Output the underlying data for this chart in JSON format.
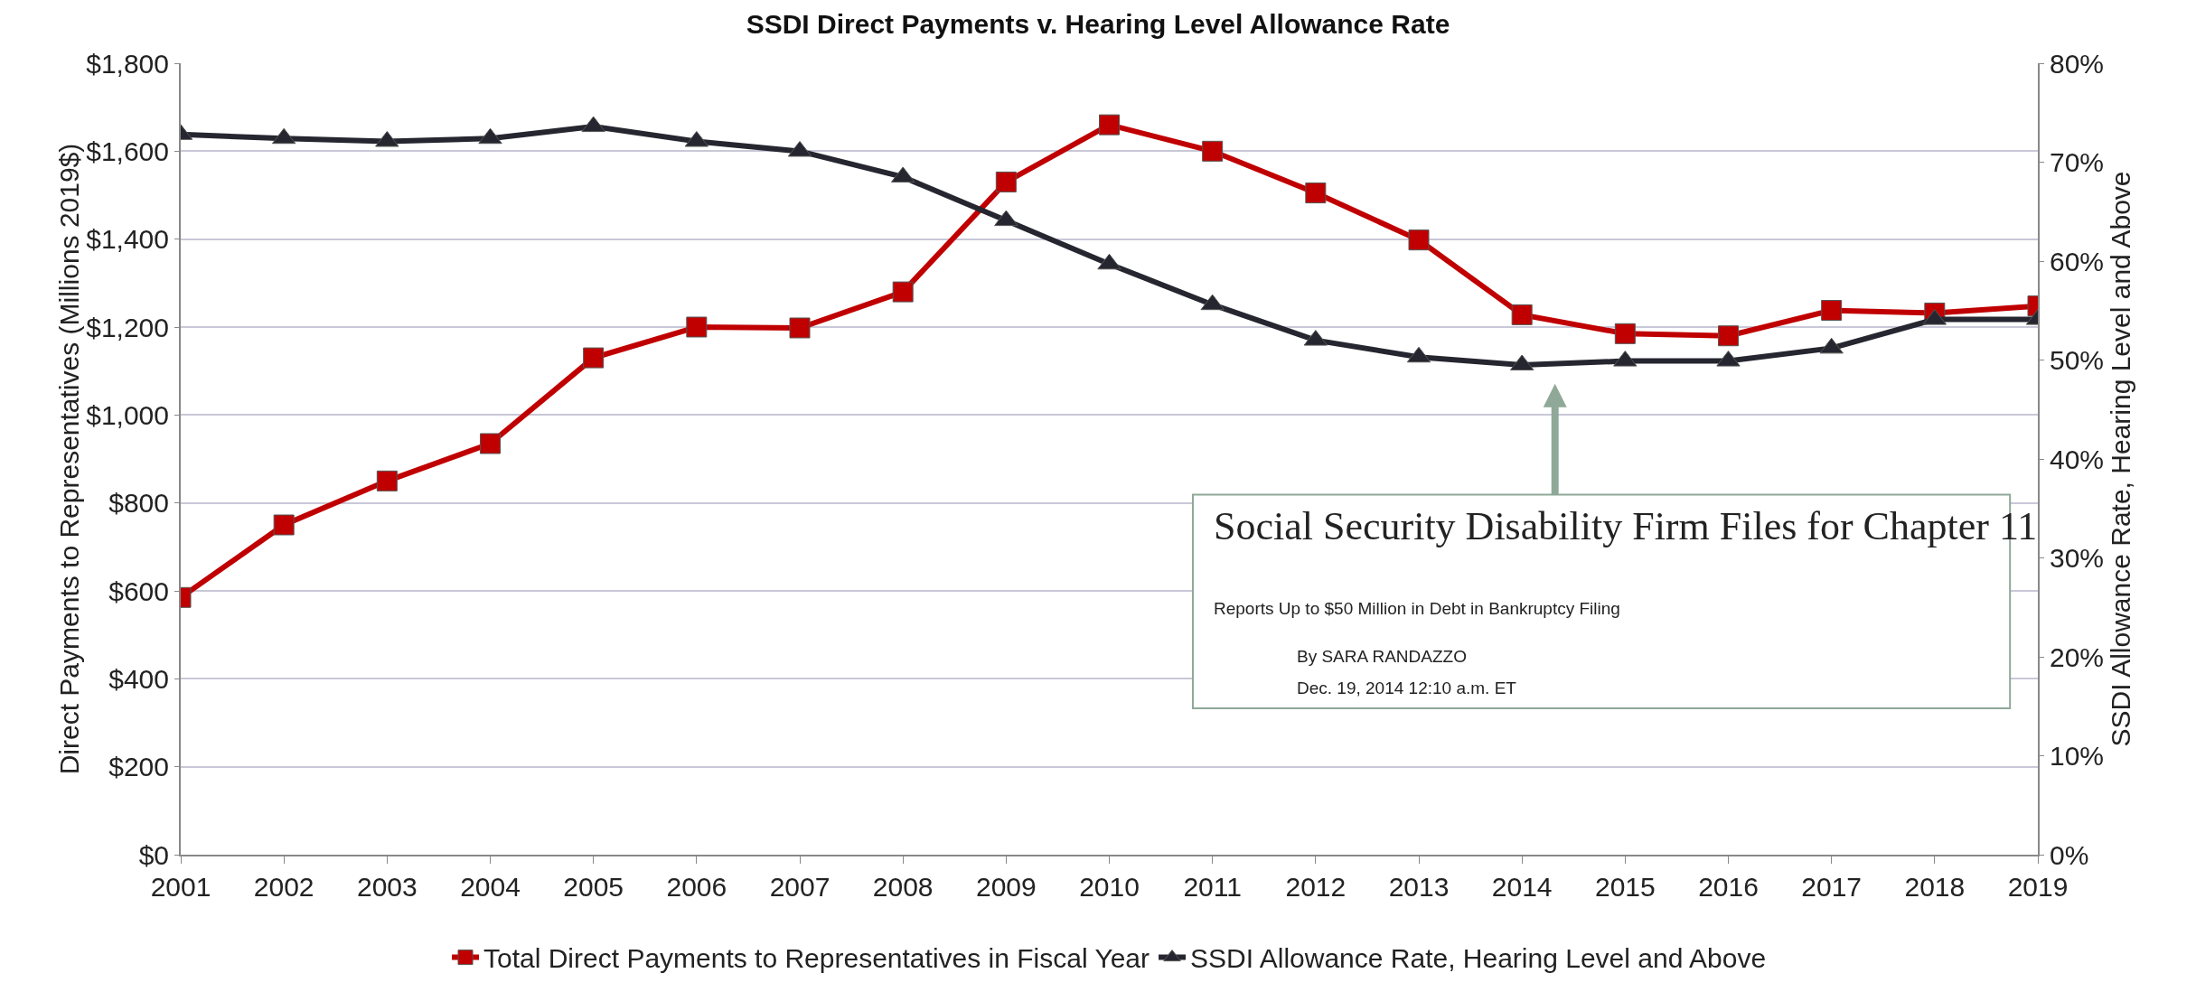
{
  "chart_data": {
    "type": "line",
    "title": "SSDI Direct Payments v. Hearing Level Allowance Rate",
    "ylabel": "Direct Payments to Representatives (Millions 2019$)",
    "y2label": "SSDI Allowance Rate, Hearing Level and Above",
    "x": [
      2001,
      2002,
      2003,
      2004,
      2005,
      2006,
      2007,
      2008,
      2009,
      2010,
      2011,
      2012,
      2013,
      2014,
      2015,
      2016,
      2017,
      2018,
      2019
    ],
    "xlim": [
      2001,
      2019
    ],
    "xticks": [
      2001,
      2002,
      2003,
      2004,
      2005,
      2006,
      2007,
      2008,
      2009,
      2010,
      2011,
      2012,
      2013,
      2014,
      2015,
      2016,
      2017,
      2018,
      2019
    ],
    "ylim": [
      0,
      1800
    ],
    "yticks": [
      {
        "value": 0,
        "label": "$0"
      },
      {
        "value": 200,
        "label": "$200"
      },
      {
        "value": 400,
        "label": "$400"
      },
      {
        "value": 600,
        "label": "$600"
      },
      {
        "value": 800,
        "label": "$800"
      },
      {
        "value": 1000,
        "label": "$1,000"
      },
      {
        "value": 1200,
        "label": "$1,200"
      },
      {
        "value": 1400,
        "label": "$1,400"
      },
      {
        "value": 1600,
        "label": "$1,600"
      },
      {
        "value": 1800,
        "label": "$1,800"
      }
    ],
    "y2lim": [
      0,
      80
    ],
    "y2ticks": [
      {
        "value": 0,
        "label": "0%"
      },
      {
        "value": 10,
        "label": "10%"
      },
      {
        "value": 20,
        "label": "20%"
      },
      {
        "value": 30,
        "label": "30%"
      },
      {
        "value": 40,
        "label": "40%"
      },
      {
        "value": 50,
        "label": "50%"
      },
      {
        "value": 60,
        "label": "60%"
      },
      {
        "value": 70,
        "label": "70%"
      },
      {
        "value": 80,
        "label": "80%"
      }
    ],
    "grid": "y",
    "legend": "bottom",
    "line_style": "solid",
    "series": [
      {
        "name": "Total Direct Payments to Representatives in Fiscal Year",
        "color": "#c00000",
        "marker": "square",
        "values": [
          585,
          750,
          850,
          935,
          1130,
          1200,
          1198,
          1280,
          1530,
          1660,
          1600,
          1505,
          1398,
          1228,
          1185,
          1180,
          1238,
          1232,
          1248
        ]
      },
      {
        "name": "SSDI Allowance Rate, Hearing Level and Above",
        "color": "#262630",
        "marker": "triangle",
        "axis": "y2",
        "values": [
          72.8,
          72.4,
          72.1,
          72.4,
          73.6,
          72.1,
          71.1,
          68.5,
          64.1,
          59.7,
          55.6,
          52.0,
          50.3,
          49.5,
          49.9,
          49.9,
          51.2,
          54.1,
          54.1
        ]
      }
    ],
    "annotations": [
      "Social Security Disability Firm Files for Chapter 11",
      "Reports Up to $50 Million in Debt in Bankruptcy Filing",
      "By SARA RANDAZZO",
      "Dec. 19, 2014 12:10 a.m. ET"
    ]
  }
}
